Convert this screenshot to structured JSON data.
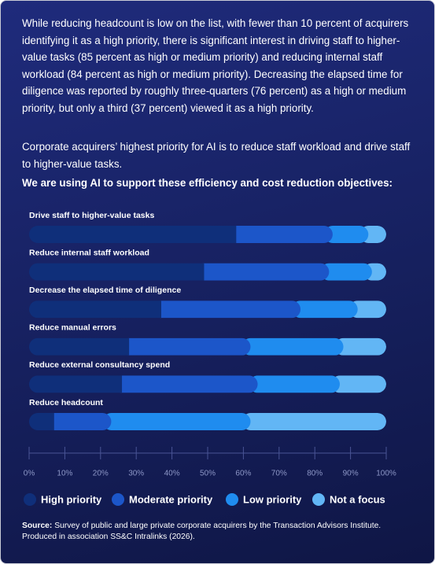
{
  "paragraphs": [
    "While reducing headcount is low on the list, with fewer than 10 percent of acquirers identifying it as a high priority, there is significant interest in driving staff to higher-value tasks (85 percent as high or medium priority) and reducing internal staff workload (84 percent as high or medium priority). Decreasing the elapsed time for diligence was reported by roughly three-quarters (76 percent) as a high or medium priority, but only a third (37 percent) viewed it as a high priority.",
    "Corporate acquirers’ highest priority for AI is to reduce staff workload and drive staff to higher-value tasks."
  ],
  "chart_data": {
    "type": "bar",
    "orientation": "horizontal",
    "stacked": true,
    "title": "We are using AI to support these efficiency and cost reduction objectives:",
    "categories": [
      "Drive staff to higher-value tasks",
      "Reduce internal staff workload",
      "Decrease the elapsed time of diligence",
      "Reduce manual errors",
      "Reduce external consultancy spend",
      "Reduce headcount"
    ],
    "series": [
      {
        "name": "High priority",
        "color": "#0f2f7a",
        "values": [
          58,
          49,
          37,
          28,
          26,
          7
        ]
      },
      {
        "name": "Moderate priority",
        "color": "#1c56c9",
        "values": [
          27,
          35,
          39,
          34,
          38,
          16
        ]
      },
      {
        "name": "Low priority",
        "color": "#1f8cef",
        "values": [
          10,
          12,
          16,
          26,
          23,
          39
        ]
      },
      {
        "name": "Not a focus",
        "color": "#62b6f5",
        "values": [
          5,
          4,
          8,
          12,
          13,
          38
        ]
      }
    ],
    "xlim": [
      0,
      100
    ],
    "xticks": [
      {
        "value": 0,
        "label": "0%"
      },
      {
        "value": 10,
        "label": "10%"
      },
      {
        "value": 20,
        "label": "20%"
      },
      {
        "value": 30,
        "label": "30%"
      },
      {
        "value": 40,
        "label": "40%"
      },
      {
        "value": 50,
        "label": "50%"
      },
      {
        "value": 60,
        "label": "60%"
      },
      {
        "value": 70,
        "label": "70%"
      },
      {
        "value": 80,
        "label": "80%"
      },
      {
        "value": 90,
        "label": "90%"
      },
      {
        "value": 100,
        "label": "100%"
      }
    ],
    "source_label": "Source:",
    "source": "Survey of public and large private corporate acquirers by the Transaction Advisors Institute. Produced in association SS&C Intralinks (2026)."
  }
}
